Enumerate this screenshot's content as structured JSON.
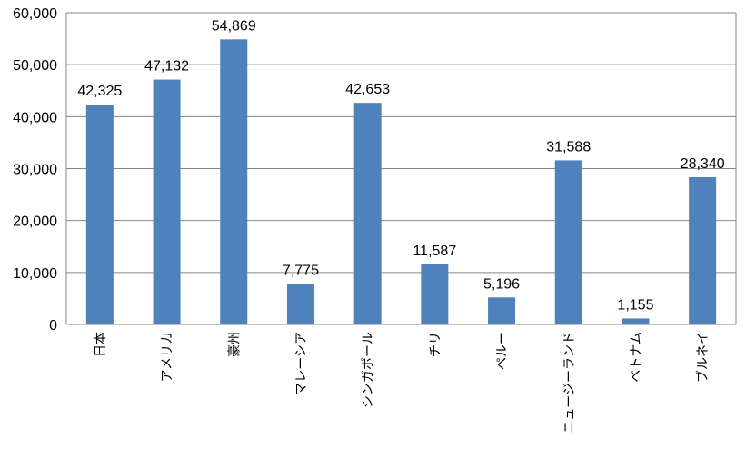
{
  "chart_data": {
    "type": "bar",
    "title": "",
    "xlabel": "",
    "ylabel": "",
    "categories": [
      "日本",
      "アメリカ",
      "豪州",
      "マレーシア",
      "シンガポール",
      "チリ",
      "ペルー",
      "ニュージーランド",
      "ベトナム",
      "ブルネイ"
    ],
    "values": [
      42325,
      47132,
      54869,
      7775,
      42653,
      11587,
      5196,
      31588,
      1155,
      28340
    ],
    "data_labels": [
      "42,325",
      "47,132",
      "54,869",
      "7,775",
      "42,653",
      "11,587",
      "5,196",
      "31,588",
      "1,155",
      "28,340"
    ],
    "ylim": [
      0,
      60000
    ],
    "yticks": [
      0,
      10000,
      20000,
      30000,
      40000,
      50000,
      60000
    ],
    "ytick_labels": [
      "0",
      "10,000",
      "20,000",
      "30,000",
      "40,000",
      "50,000",
      "60,000"
    ],
    "grid": true,
    "legend": "none",
    "bar_color": "#4F81BD",
    "grid_color": "#868686"
  }
}
